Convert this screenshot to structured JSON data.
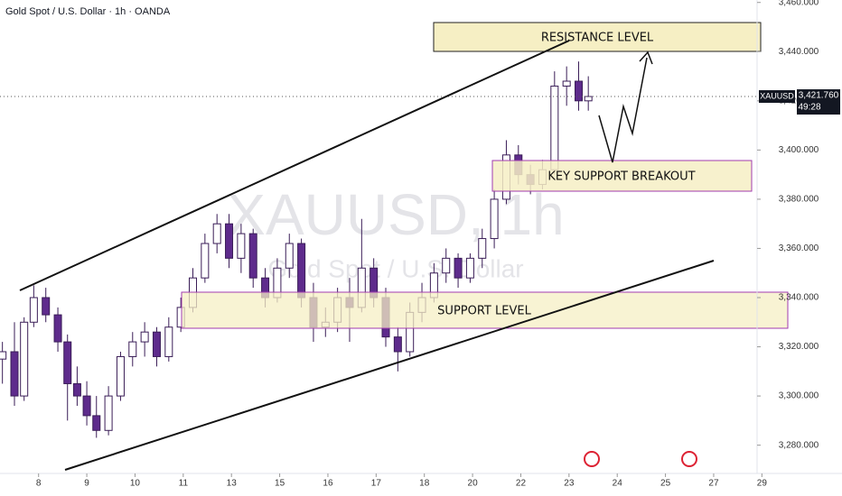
{
  "chart_data": {
    "type": "candlestick",
    "title": "Gold Spot / U.S. Dollar · 1h · OANDA",
    "watermark": "XAUUSD, 1h",
    "watermark_subtitle": "Gold Spot / U.S. Dollar",
    "symbol": "XAUUSD",
    "last_price": {
      "value": 3421.76,
      "label": "3,421.760"
    },
    "countdown": "49:28",
    "annotations": {
      "resistance": "RESISTANCE LEVEL",
      "key_support": "KEY SUPPORT BREAKOUT",
      "support": "SUPPORT LEVEL"
    },
    "up_color": "#ffffff",
    "down_color": "#5e2b8c",
    "wick_color": "#3a1d57",
    "xlim": [
      -0.8,
      14.9
    ],
    "xticks": [
      {
        "value": 0,
        "label": "8"
      },
      {
        "value": 1,
        "label": "9"
      },
      {
        "value": 2,
        "label": "10"
      },
      {
        "value": 3,
        "label": "11"
      },
      {
        "value": 4,
        "label": "13"
      },
      {
        "value": 5,
        "label": "15"
      },
      {
        "value": 6,
        "label": "16"
      },
      {
        "value": 7,
        "label": "17"
      },
      {
        "value": 8,
        "label": "18"
      },
      {
        "value": 9,
        "label": "20"
      },
      {
        "value": 10,
        "label": "22"
      },
      {
        "value": 11,
        "label": "23"
      },
      {
        "value": 12,
        "label": "24"
      },
      {
        "value": 13,
        "label": "25"
      },
      {
        "value": 14,
        "label": "27"
      },
      {
        "value": 15,
        "label": "29"
      }
    ],
    "ylim": [
      3274,
      3461
    ],
    "yticks": [
      {
        "value": 3280,
        "label": "3,280.000"
      },
      {
        "value": 3300,
        "label": "3,300.000"
      },
      {
        "value": 3320,
        "label": "3,320.000"
      },
      {
        "value": 3340,
        "label": "3,340.000"
      },
      {
        "value": 3360,
        "label": "3,360.000"
      },
      {
        "value": 3380,
        "label": "3,380.000"
      },
      {
        "value": 3400,
        "label": "3,400.000"
      },
      {
        "value": 3420,
        "label": "3,420.000"
      },
      {
        "value": 3440,
        "label": "3,440.000"
      },
      {
        "value": 3460,
        "label": "3,460.000"
      }
    ],
    "x": [
      -0.75,
      -0.5,
      -0.3,
      -0.1,
      0.15,
      0.4,
      0.6,
      0.8,
      1.0,
      1.2,
      1.45,
      1.7,
      1.95,
      2.2,
      2.45,
      2.7,
      2.95,
      3.2,
      3.45,
      3.7,
      3.95,
      4.2,
      4.45,
      4.7,
      4.95,
      5.2,
      5.45,
      5.7,
      5.95,
      6.2,
      6.45,
      6.7,
      6.95,
      7.2,
      7.45,
      7.7,
      7.95,
      8.2,
      8.45,
      8.7,
      8.95,
      9.2,
      9.45,
      9.7,
      9.95,
      10.2,
      10.45,
      10.7,
      10.95,
      11.2,
      11.4
    ],
    "open": [
      3315,
      3318,
      3300,
      3330,
      3340,
      3333,
      3322,
      3305,
      3300,
      3292,
      3286,
      3300,
      3316,
      3322,
      3326,
      3316,
      3328,
      3336,
      3348,
      3362,
      3370,
      3356,
      3366,
      3348,
      3340,
      3352,
      3362,
      3340,
      3328,
      3330,
      3340,
      3336,
      3352,
      3340,
      3324,
      3318,
      3334,
      3340,
      3350,
      3356,
      3348,
      3356,
      3364,
      3380,
      3398,
      3390,
      3386,
      3392,
      3426,
      3428,
      3420
    ],
    "high": [
      3322,
      3330,
      3332,
      3345,
      3344,
      3336,
      3325,
      3312,
      3306,
      3300,
      3304,
      3318,
      3326,
      3330,
      3328,
      3332,
      3340,
      3352,
      3366,
      3374,
      3374,
      3370,
      3368,
      3352,
      3356,
      3366,
      3364,
      3346,
      3336,
      3344,
      3348,
      3372,
      3356,
      3344,
      3328,
      3338,
      3346,
      3354,
      3360,
      3358,
      3358,
      3368,
      3384,
      3404,
      3402,
      3394,
      3396,
      3432,
      3434,
      3436,
      3430
    ],
    "low": [
      3305,
      3296,
      3298,
      3328,
      3330,
      3318,
      3290,
      3296,
      3288,
      3283,
      3284,
      3298,
      3312,
      3316,
      3312,
      3314,
      3326,
      3334,
      3346,
      3358,
      3352,
      3350,
      3344,
      3336,
      3338,
      3348,
      3336,
      3322,
      3324,
      3326,
      3322,
      3334,
      3336,
      3320,
      3310,
      3316,
      3330,
      3338,
      3346,
      3344,
      3346,
      3352,
      3360,
      3378,
      3386,
      3382,
      3384,
      3390,
      3418,
      3416,
      3416
    ],
    "close": [
      3318,
      3300,
      3330,
      3340,
      3333,
      3322,
      3305,
      3300,
      3292,
      3286,
      3300,
      3316,
      3322,
      3326,
      3316,
      3328,
      3336,
      3348,
      3362,
      3370,
      3356,
      3366,
      3348,
      3340,
      3352,
      3362,
      3340,
      3328,
      3330,
      3340,
      3336,
      3352,
      3340,
      3324,
      3318,
      3334,
      3340,
      3350,
      3356,
      3348,
      3356,
      3364,
      3380,
      3398,
      3390,
      3386,
      3392,
      3426,
      3428,
      3420,
      3421.76
    ]
  }
}
